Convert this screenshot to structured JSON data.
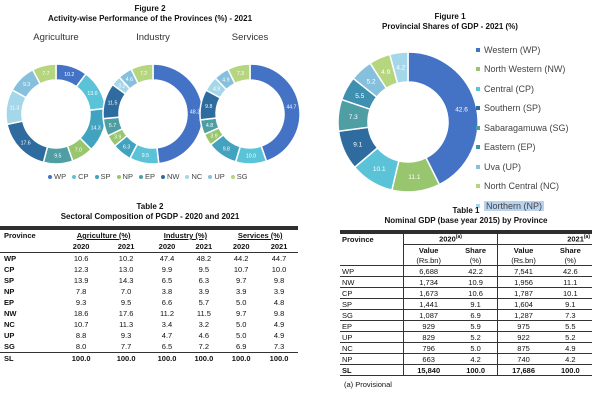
{
  "fig2": {
    "title": "Figure 2",
    "subtitle": "Activity-wise Performance of the Provinces (%) - 2021",
    "chart_data": {
      "type": "pie",
      "provinces": [
        "WP",
        "CP",
        "SP",
        "NP",
        "EP",
        "NW",
        "NC",
        "UP",
        "SG"
      ],
      "colors": [
        "#4472c4",
        "#5bc3d8",
        "#41a3bf",
        "#98c66e",
        "#4f9ea3",
        "#2e6b9e",
        "#a5d7ea",
        "#86c0dc",
        "#b5d67f"
      ],
      "series": [
        {
          "name": "Agriculture",
          "values": [
            10.2,
            13.0,
            14.3,
            7.0,
            9.5,
            17.6,
            11.3,
            9.3,
            7.7
          ]
        },
        {
          "name": "Industry",
          "values": [
            48.2,
            9.5,
            6.3,
            3.9,
            5.7,
            11.5,
            3.2,
            4.6,
            7.2
          ]
        },
        {
          "name": "Services",
          "values": [
            44.7,
            10.0,
            9.8,
            3.9,
            4.8,
            9.8,
            4.9,
            4.9,
            7.3
          ]
        }
      ]
    }
  },
  "fig1": {
    "title": "Figure 1",
    "subtitle": "Provincial Shares of GDP - 2021 (%)",
    "chart_data": {
      "type": "pie",
      "categories": [
        "Western (WP)",
        "North Western (NW)",
        "Central (CP)",
        "Southern (SP)",
        "Sabaragamuwa (SG)",
        "Eastern (EP)",
        "Uva (UP)",
        "North Central (NC)",
        "Northern (NP)"
      ],
      "values": [
        42.6,
        11.1,
        10.1,
        9.1,
        7.3,
        5.5,
        5.2,
        4.9,
        4.2
      ],
      "colors": [
        "#4472c4",
        "#98c66e",
        "#5bc3d8",
        "#2e6b9e",
        "#4f9ea3",
        "#3e8fb0",
        "#86c0dc",
        "#b5d67f",
        "#a5d7ea"
      ]
    }
  },
  "table2": {
    "title": "Table 2",
    "subtitle": "Sectoral Composition of PGDP - 2020 and 2021",
    "h_province": "Province",
    "h_agri": "Agriculture (%)",
    "h_ind": "Industry (%)",
    "h_serv": "Services (%)",
    "years": [
      "2020",
      "2021"
    ],
    "rows": [
      [
        "WP",
        "10.6",
        "10.2",
        "47.4",
        "48.2",
        "44.2",
        "44.7"
      ],
      [
        "CP",
        "12.3",
        "13.0",
        "9.9",
        "9.5",
        "10.7",
        "10.0"
      ],
      [
        "SP",
        "13.9",
        "14.3",
        "6.5",
        "6.3",
        "9.7",
        "9.8"
      ],
      [
        "NP",
        "7.8",
        "7.0",
        "3.8",
        "3.9",
        "3.9",
        "3.9"
      ],
      [
        "EP",
        "9.3",
        "9.5",
        "6.6",
        "5.7",
        "5.0",
        "4.8"
      ],
      [
        "NW",
        "18.6",
        "17.6",
        "11.2",
        "11.5",
        "9.7",
        "9.8"
      ],
      [
        "NC",
        "10.7",
        "11.3",
        "3.4",
        "3.2",
        "5.0",
        "4.9"
      ],
      [
        "UP",
        "8.8",
        "9.3",
        "4.7",
        "4.6",
        "5.0",
        "4.9"
      ],
      [
        "SG",
        "8.0",
        "7.7",
        "6.5",
        "7.2",
        "6.9",
        "7.3"
      ]
    ],
    "total": [
      "SL",
      "100.0",
      "100.0",
      "100.0",
      "100.0",
      "100.0",
      "100.0"
    ]
  },
  "table1": {
    "title": "Table 1",
    "subtitle": "Nominal GDP (base year 2015) by Province",
    "h_province": "Province",
    "y2020": "2020",
    "y2021": "2021",
    "sup": "(a)",
    "h_value": "Value",
    "h_value_unit": "(Rs.bn)",
    "h_share": "Share",
    "h_share_unit": "(%)",
    "rows": [
      [
        "WP",
        "6,688",
        "42.2",
        "7,541",
        "42.6"
      ],
      [
        "NW",
        "1,734",
        "10.9",
        "1,956",
        "11.1"
      ],
      [
        "CP",
        "1,673",
        "10.6",
        "1,787",
        "10.1"
      ],
      [
        "SP",
        "1,441",
        "9.1",
        "1,604",
        "9.1"
      ],
      [
        "SG",
        "1,087",
        "6.9",
        "1,287",
        "7.3"
      ],
      [
        "EP",
        "929",
        "5.9",
        "975",
        "5.5"
      ],
      [
        "UP",
        "829",
        "5.2",
        "922",
        "5.2"
      ],
      [
        "NC",
        "796",
        "5.0",
        "875",
        "4.9"
      ],
      [
        "NP",
        "663",
        "4.2",
        "740",
        "4.2"
      ]
    ],
    "total": [
      "SL",
      "15,840",
      "100.0",
      "17,686",
      "100.0"
    ],
    "note": "(a) Provisional"
  }
}
